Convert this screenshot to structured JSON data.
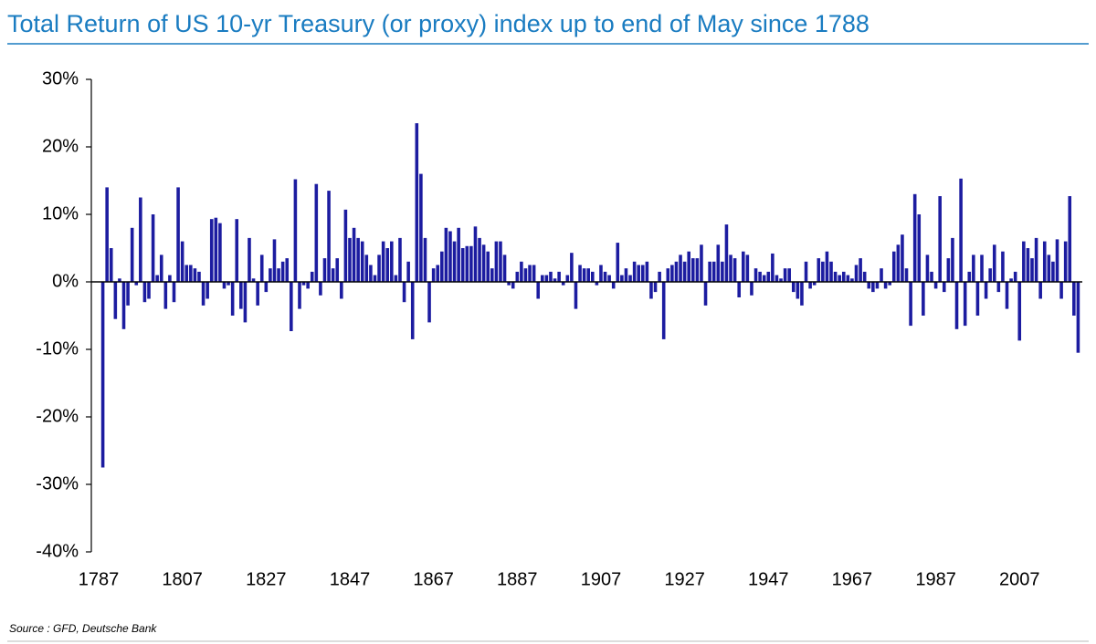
{
  "chart_data": {
    "type": "bar",
    "title": "Total Return of US 10-yr Treasury (or proxy) index up to end of May since 1788",
    "source": "Source : GFD, Deutsche Bank",
    "color": "#1c1ca0",
    "x": [
      1788,
      1789,
      1790,
      1791,
      1792,
      1793,
      1794,
      1795,
      1796,
      1797,
      1798,
      1799,
      1800,
      1801,
      1802,
      1803,
      1804,
      1805,
      1806,
      1807,
      1808,
      1809,
      1810,
      1811,
      1812,
      1813,
      1814,
      1815,
      1816,
      1817,
      1818,
      1819,
      1820,
      1821,
      1822,
      1823,
      1824,
      1825,
      1826,
      1827,
      1828,
      1829,
      1830,
      1831,
      1832,
      1833,
      1834,
      1835,
      1836,
      1837,
      1838,
      1839,
      1840,
      1841,
      1842,
      1843,
      1844,
      1845,
      1846,
      1847,
      1848,
      1849,
      1850,
      1851,
      1852,
      1853,
      1854,
      1855,
      1856,
      1857,
      1858,
      1859,
      1860,
      1861,
      1862,
      1863,
      1864,
      1865,
      1866,
      1867,
      1868,
      1869,
      1870,
      1871,
      1872,
      1873,
      1874,
      1875,
      1876,
      1877,
      1878,
      1879,
      1880,
      1881,
      1882,
      1883,
      1884,
      1885,
      1886,
      1887,
      1888,
      1889,
      1890,
      1891,
      1892,
      1893,
      1894,
      1895,
      1896,
      1897,
      1898,
      1899,
      1900,
      1901,
      1902,
      1903,
      1904,
      1905,
      1906,
      1907,
      1908,
      1909,
      1910,
      1911,
      1912,
      1913,
      1914,
      1915,
      1916,
      1917,
      1918,
      1919,
      1920,
      1921,
      1922,
      1923,
      1924,
      1925,
      1926,
      1927,
      1928,
      1929,
      1930,
      1931,
      1932,
      1933,
      1934,
      1935,
      1936,
      1937,
      1938,
      1939,
      1940,
      1941,
      1942,
      1943,
      1944,
      1945,
      1946,
      1947,
      1948,
      1949,
      1950,
      1951,
      1952,
      1953,
      1954,
      1955,
      1956,
      1957,
      1958,
      1959,
      1960,
      1961,
      1962,
      1963,
      1964,
      1965,
      1966,
      1967,
      1968,
      1969,
      1970,
      1971,
      1972,
      1973,
      1974,
      1975,
      1976,
      1977,
      1978,
      1979,
      1980,
      1981,
      1982,
      1983,
      1984,
      1985,
      1986,
      1987,
      1988,
      1989,
      1990,
      1991,
      1992,
      1993,
      1994,
      1995,
      1996,
      1997,
      1998,
      1999,
      2000,
      2001,
      2002,
      2003,
      2004,
      2005,
      2006,
      2007,
      2008,
      2009,
      2010,
      2011,
      2012,
      2013,
      2014,
      2015,
      2016,
      2017,
      2018,
      2019,
      2020,
      2021
    ],
    "values": [
      -27.5,
      14,
      5,
      -5.5,
      0.5,
      -7,
      -3.5,
      8,
      -0.5,
      12.5,
      -3,
      -2.5,
      10,
      1,
      4,
      -4,
      1,
      -3,
      14,
      6,
      2.5,
      2.5,
      2,
      1.5,
      -3.5,
      -2.5,
      9.3,
      9.5,
      8.7,
      -1,
      -0.5,
      -5,
      9.3,
      -4,
      -6,
      6.5,
      0.5,
      -3.5,
      4,
      -1.5,
      2,
      6.3,
      2,
      3,
      3.5,
      -7.3,
      15.2,
      -4,
      -0.5,
      -1,
      1.5,
      14.5,
      -2,
      3.5,
      13.5,
      2,
      3.5,
      -2.5,
      10.7,
      6.5,
      8,
      6.5,
      6,
      4,
      2.5,
      1,
      4,
      6,
      5,
      6,
      1,
      6.5,
      -3,
      3,
      -8.5,
      23.5,
      16,
      6.5,
      -6,
      2,
      2.5,
      4.5,
      8,
      7.5,
      6,
      8,
      5,
      5.3,
      5.3,
      8.2,
      6.5,
      5.5,
      4.5,
      2,
      6,
      6,
      4,
      -0.5,
      -1,
      1.5,
      3,
      2,
      2.5,
      2.5,
      -2.5,
      1,
      1,
      1.5,
      0.5,
      1.5,
      -0.5,
      1,
      4.3,
      -4,
      2.5,
      2,
      2,
      1.5,
      -0.5,
      2.5,
      1.5,
      1,
      -1,
      5.8,
      1,
      2,
      1,
      3,
      2.5,
      2.5,
      3,
      -2.5,
      -1.5,
      1.5,
      -8.5,
      2,
      2.5,
      3,
      4,
      3,
      4.5,
      3.5,
      3.5,
      5.5,
      -3.5,
      3,
      3,
      5.5,
      3,
      8.5,
      4,
      3.5,
      -2.3,
      4.5,
      4,
      -2,
      2,
      1.5,
      1,
      1.5,
      4.2,
      1,
      0.5,
      2,
      2,
      -1.5,
      -2.5,
      -3.5,
      3,
      -1,
      -0.5,
      3.5,
      3,
      4.5,
      3,
      1.5,
      1,
      1.5,
      1,
      0.5,
      2.5,
      3.5,
      1.5,
      -1,
      -1.5,
      -1,
      2,
      -1,
      -0.5,
      4.5,
      5.5,
      7,
      2,
      -6.5,
      13,
      10,
      -5,
      4,
      1.5,
      -1,
      12.7,
      -1.5,
      3.5,
      6.5,
      -7,
      15.3,
      -6.5,
      1.5,
      4,
      -5,
      4,
      -2.5,
      2,
      5.5,
      -1.5,
      4.5,
      -4,
      0.5,
      1.5,
      -8.7,
      6,
      5,
      3.5,
      6.5,
      -2.5,
      6,
      4,
      3,
      6.3,
      -2.5,
      6,
      12.7,
      -5,
      -10.5
    ],
    "xlim": [
      1787,
      2022
    ],
    "xticks": [
      1787,
      1807,
      1827,
      1847,
      1867,
      1887,
      1907,
      1927,
      1947,
      1967,
      1987,
      2007
    ],
    "ylim": [
      -40,
      30
    ],
    "yticks": [
      {
        "value": -40,
        "label": "-40%"
      },
      {
        "value": -30,
        "label": "-30%"
      },
      {
        "value": -20,
        "label": "-20%"
      },
      {
        "value": -10,
        "label": "-10%"
      },
      {
        "value": 0,
        "label": "0%"
      },
      {
        "value": 10,
        "label": "10%"
      },
      {
        "value": 20,
        "label": "20%"
      },
      {
        "value": 30,
        "label": "30%"
      }
    ]
  }
}
